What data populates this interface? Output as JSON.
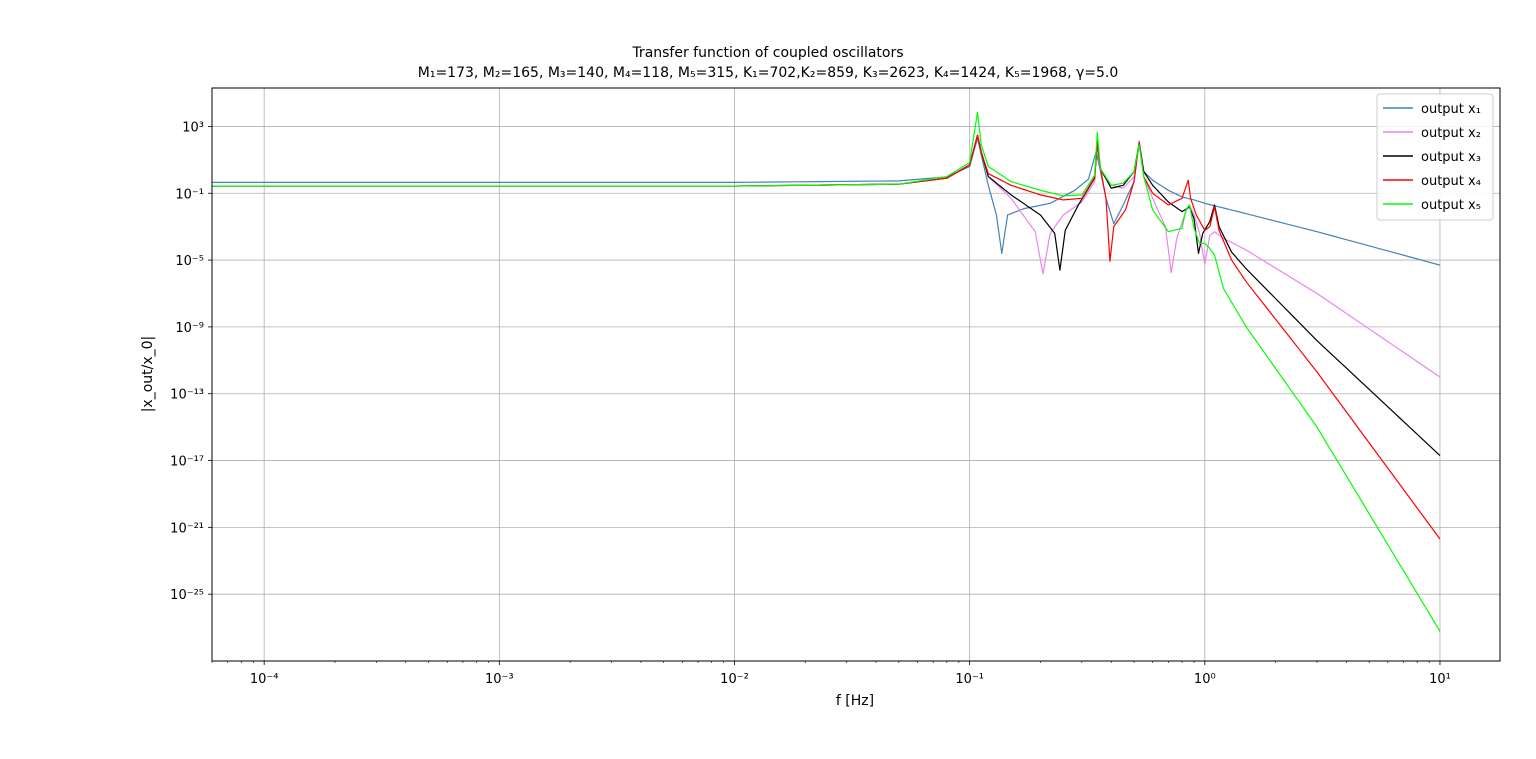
{
  "chart_data": {
    "type": "line",
    "title": "Transfer function of coupled oscillators",
    "subtitle": "M₁=173, M₂=165, M₃=140, M₄=118, M₅=315, K₁=702,K₂=859, K₃=2623, K₄=1424, K₅=1968, γ=5.0",
    "xlabel": "f [Hz]",
    "ylabel": "|x_out/x_0|",
    "xscale": "log",
    "yscale": "log",
    "xlim": [
      6e-05,
      18
    ],
    "ylim": [
      1e-29,
      200000.0
    ],
    "xticks": [
      0.0001,
      0.001,
      0.01,
      0.1,
      1,
      10
    ],
    "xtick_labels": [
      "10⁻⁴",
      "10⁻³",
      "10⁻²",
      "10⁻¹",
      "10⁰",
      "10¹"
    ],
    "yticks": [
      1000.0,
      0.1,
      1e-05,
      1e-09,
      1e-13,
      1e-17,
      1e-21,
      1e-25
    ],
    "ytick_labels": [
      "10³",
      "10⁻¹",
      "10⁻⁵",
      "10⁻⁹",
      "10⁻¹³",
      "10⁻¹⁷",
      "10⁻²¹",
      "10⁻²⁵"
    ],
    "grid": true,
    "legend_position": "top-right",
    "series": [
      {
        "name": "output x₁",
        "color": "#4682b4",
        "points": [
          [
            6e-05,
            0.45
          ],
          [
            0.01,
            0.45
          ],
          [
            0.05,
            0.55
          ],
          [
            0.08,
            0.95
          ],
          [
            0.1,
            4
          ],
          [
            0.108,
            200
          ],
          [
            0.112,
            20
          ],
          [
            0.12,
            0.3
          ],
          [
            0.13,
            0.005
          ],
          [
            0.137,
            2.5e-05
          ],
          [
            0.145,
            0.005
          ],
          [
            0.17,
            0.012
          ],
          [
            0.22,
            0.025
          ],
          [
            0.28,
            0.15
          ],
          [
            0.32,
            0.7
          ],
          [
            0.345,
            30
          ],
          [
            0.36,
            2
          ],
          [
            0.38,
            0.05
          ],
          [
            0.41,
            0.0015
          ],
          [
            0.45,
            0.02
          ],
          [
            0.5,
            0.5
          ],
          [
            0.526,
            130
          ],
          [
            0.55,
            2
          ],
          [
            0.6,
            0.6
          ],
          [
            0.7,
            0.15
          ],
          [
            0.8,
            0.06
          ],
          [
            0.9,
            0.04
          ],
          [
            1.0,
            0.025
          ],
          [
            1.5,
            0.006
          ],
          [
            3,
            0.0005
          ],
          [
            10,
            5e-06
          ]
        ]
      },
      {
        "name": "output x₂",
        "color": "#ee82ee",
        "points": [
          [
            6e-05,
            0.27
          ],
          [
            0.01,
            0.27
          ],
          [
            0.05,
            0.35
          ],
          [
            0.08,
            0.8
          ],
          [
            0.1,
            5
          ],
          [
            0.108,
            280
          ],
          [
            0.112,
            30
          ],
          [
            0.12,
            1
          ],
          [
            0.15,
            0.05
          ],
          [
            0.19,
            0.0005
          ],
          [
            0.205,
            1.5e-06
          ],
          [
            0.22,
            0.0004
          ],
          [
            0.25,
            0.005
          ],
          [
            0.3,
            0.03
          ],
          [
            0.34,
            0.5
          ],
          [
            0.348,
            60
          ],
          [
            0.36,
            2
          ],
          [
            0.4,
            0.3
          ],
          [
            0.45,
            0.2
          ],
          [
            0.5,
            1
          ],
          [
            0.526,
            80
          ],
          [
            0.55,
            1
          ],
          [
            0.6,
            0.05
          ],
          [
            0.68,
            0.001
          ],
          [
            0.72,
            1.8e-06
          ],
          [
            0.76,
            0.0002
          ],
          [
            0.82,
            0.005
          ],
          [
            0.86,
            0.02
          ],
          [
            0.9,
            0.005
          ],
          [
            0.95,
            0.0004
          ],
          [
            1.0,
            5.5e-06
          ],
          [
            1.05,
            0.0003
          ],
          [
            1.1,
            0.0005
          ],
          [
            1.2,
            0.0002
          ],
          [
            1.5,
            4e-05
          ],
          [
            3,
            1e-07
          ],
          [
            10,
            1e-12
          ]
        ]
      },
      {
        "name": "output x₃",
        "color": "#000000",
        "points": [
          [
            6e-05,
            0.27
          ],
          [
            0.01,
            0.27
          ],
          [
            0.05,
            0.35
          ],
          [
            0.08,
            0.8
          ],
          [
            0.1,
            5
          ],
          [
            0.108,
            300
          ],
          [
            0.112,
            30
          ],
          [
            0.12,
            1
          ],
          [
            0.15,
            0.08
          ],
          [
            0.2,
            0.005
          ],
          [
            0.23,
            0.0004
          ],
          [
            0.242,
            2.5e-06
          ],
          [
            0.255,
            0.0006
          ],
          [
            0.29,
            0.02
          ],
          [
            0.34,
            0.8
          ],
          [
            0.349,
            120
          ],
          [
            0.36,
            3
          ],
          [
            0.4,
            0.2
          ],
          [
            0.45,
            0.3
          ],
          [
            0.5,
            2
          ],
          [
            0.526,
            100
          ],
          [
            0.55,
            2
          ],
          [
            0.6,
            0.3
          ],
          [
            0.7,
            0.03
          ],
          [
            0.8,
            0.008
          ],
          [
            0.86,
            0.015
          ],
          [
            0.9,
            0.003
          ],
          [
            0.94,
            2.5e-05
          ],
          [
            0.98,
            0.0004
          ],
          [
            1.05,
            0.002
          ],
          [
            1.1,
            0.02
          ],
          [
            1.15,
            0.001
          ],
          [
            1.3,
            3e-05
          ],
          [
            1.5,
            3e-06
          ],
          [
            3,
            1.5e-10
          ],
          [
            10,
            2e-17
          ]
        ]
      },
      {
        "name": "output x₄",
        "color": "#ff0000",
        "points": [
          [
            6e-05,
            0.27
          ],
          [
            0.01,
            0.27
          ],
          [
            0.05,
            0.35
          ],
          [
            0.08,
            0.8
          ],
          [
            0.1,
            5
          ],
          [
            0.108,
            300
          ],
          [
            0.112,
            30
          ],
          [
            0.12,
            1.5
          ],
          [
            0.15,
            0.3
          ],
          [
            0.2,
            0.08
          ],
          [
            0.25,
            0.04
          ],
          [
            0.3,
            0.05
          ],
          [
            0.34,
            0.9
          ],
          [
            0.349,
            130
          ],
          [
            0.36,
            3
          ],
          [
            0.38,
            0.05
          ],
          [
            0.395,
            8.5e-06
          ],
          [
            0.41,
            0.001
          ],
          [
            0.46,
            0.01
          ],
          [
            0.5,
            0.5
          ],
          [
            0.526,
            110
          ],
          [
            0.55,
            1
          ],
          [
            0.6,
            0.1
          ],
          [
            0.7,
            0.02
          ],
          [
            0.8,
            0.05
          ],
          [
            0.85,
            0.6
          ],
          [
            0.87,
            0.05
          ],
          [
            0.92,
            0.005
          ],
          [
            1.0,
            0.0006
          ],
          [
            1.05,
            0.001
          ],
          [
            1.1,
            0.015
          ],
          [
            1.15,
            0.0006
          ],
          [
            1.3,
            1e-05
          ],
          [
            1.5,
            5e-07
          ],
          [
            3,
            2e-12
          ],
          [
            10,
            2e-22
          ]
        ]
      },
      {
        "name": "output x₅",
        "color": "#00ff00",
        "points": [
          [
            6e-05,
            0.27
          ],
          [
            0.01,
            0.27
          ],
          [
            0.05,
            0.35
          ],
          [
            0.08,
            1
          ],
          [
            0.1,
            7
          ],
          [
            0.108,
            7000
          ],
          [
            0.112,
            80
          ],
          [
            0.12,
            4
          ],
          [
            0.15,
            0.5
          ],
          [
            0.2,
            0.15
          ],
          [
            0.25,
            0.07
          ],
          [
            0.3,
            0.08
          ],
          [
            0.34,
            1.2
          ],
          [
            0.349,
            450
          ],
          [
            0.36,
            3
          ],
          [
            0.4,
            0.3
          ],
          [
            0.45,
            0.4
          ],
          [
            0.5,
            2
          ],
          [
            0.526,
            80
          ],
          [
            0.55,
            1
          ],
          [
            0.6,
            0.01
          ],
          [
            0.7,
            0.0005
          ],
          [
            0.8,
            0.0008
          ],
          [
            0.83,
            0.01
          ],
          [
            0.86,
            0.02
          ],
          [
            0.9,
            0.0008
          ],
          [
            0.95,
            0.0001
          ],
          [
            1.0,
            0.0001
          ],
          [
            1.05,
            5e-05
          ],
          [
            1.1,
            2e-05
          ],
          [
            1.2,
            2e-07
          ],
          [
            1.5,
            1e-09
          ],
          [
            3,
            1e-15
          ],
          [
            10,
            6e-28
          ]
        ]
      }
    ]
  }
}
